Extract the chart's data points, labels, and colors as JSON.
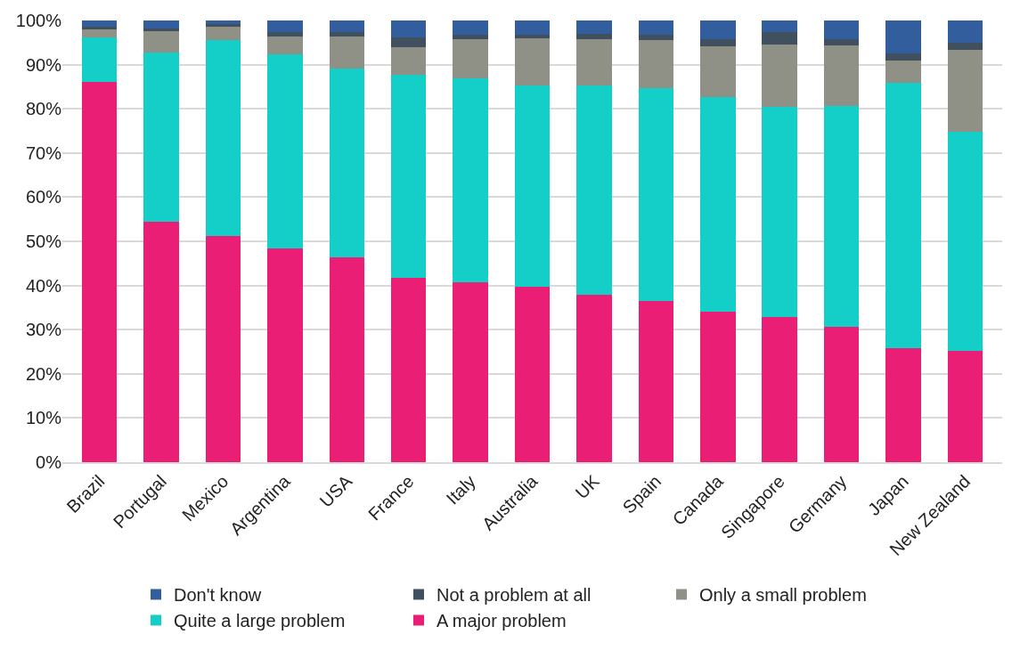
{
  "chart_data": {
    "type": "bar",
    "stacked": true,
    "categories": [
      "Brazil",
      "Portugal",
      "Mexico",
      "Argentina",
      "USA",
      "France",
      "Italy",
      "Australia",
      "UK",
      "Spain",
      "Canada",
      "Singapore",
      "Germany",
      "Japan",
      "New Zealand"
    ],
    "series": [
      {
        "name": "A major problem",
        "color": "#e91e74",
        "values": [
          86.0,
          54.5,
          51.3,
          48.3,
          46.4,
          41.7,
          40.8,
          39.7,
          38.0,
          36.5,
          34.0,
          32.9,
          30.7,
          25.9,
          25.2
        ]
      },
      {
        "name": "Quite a large problem",
        "color": "#14cfc8",
        "values": [
          10.2,
          38.3,
          44.2,
          44.1,
          42.7,
          46.1,
          46.1,
          45.6,
          47.3,
          48.2,
          48.7,
          47.5,
          49.9,
          60.0,
          49.5
        ]
      },
      {
        "name": "Only a small problem",
        "color": "#8f9187",
        "values": [
          1.7,
          4.8,
          3.0,
          4.0,
          7.3,
          6.1,
          8.9,
          10.7,
          10.5,
          10.8,
          11.5,
          14.1,
          13.7,
          5.1,
          18.6
        ]
      },
      {
        "name": "Not a problem at all",
        "color": "#40505e",
        "values": [
          0.7,
          0.6,
          0.6,
          1.0,
          1.0,
          2.2,
          1.0,
          0.8,
          1.2,
          1.2,
          1.6,
          2.9,
          1.5,
          1.6,
          1.6
        ]
      },
      {
        "name": "Don't know",
        "color": "#335e9e",
        "values": [
          1.4,
          1.8,
          0.9,
          2.6,
          2.6,
          3.9,
          3.2,
          3.2,
          3.0,
          3.3,
          4.2,
          2.6,
          4.2,
          7.4,
          5.1
        ]
      }
    ],
    "ylim": [
      0,
      100
    ],
    "yticks": [
      {
        "value": 0,
        "label": "0%"
      },
      {
        "value": 10,
        "label": "10%"
      },
      {
        "value": 20,
        "label": "20%"
      },
      {
        "value": 30,
        "label": "30%"
      },
      {
        "value": 40,
        "label": "40%"
      },
      {
        "value": 50,
        "label": "50%"
      },
      {
        "value": 60,
        "label": "60%"
      },
      {
        "value": 70,
        "label": "70%"
      },
      {
        "value": 80,
        "label": "80%"
      },
      {
        "value": 90,
        "label": "90%"
      },
      {
        "value": 100,
        "label": "100%"
      }
    ],
    "grid": "y",
    "legend": "bottom"
  }
}
